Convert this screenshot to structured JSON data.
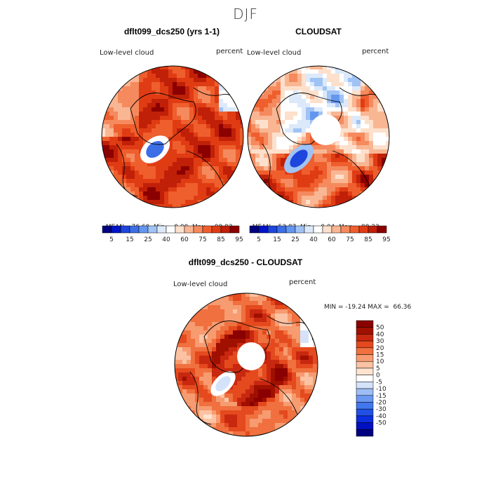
{
  "figure": {
    "title": "DJF"
  },
  "colors": {
    "pos_scale": [
      "#000080",
      "#0014c8",
      "#1e46dc",
      "#3c6ee6",
      "#6496f0",
      "#a0c3f5",
      "#dce9fa",
      "#ffffff",
      "#fde0cc",
      "#f9b693",
      "#f58a5e",
      "#ee5f2d",
      "#e03c14",
      "#c02008",
      "#8b0000"
    ],
    "diff_scale": [
      "#000080",
      "#0010c0",
      "#0a2ee0",
      "#2050e6",
      "#4278ee",
      "#6a98f2",
      "#9ebdf6",
      "#d4e3fa",
      "#ffffff",
      "#fde3d0",
      "#fbc2a3",
      "#f79b70",
      "#f0703f",
      "#e44a1e",
      "#c82810",
      "#a01000",
      "#8b0000"
    ]
  },
  "chart_data": [
    {
      "type": "heatmap",
      "projection": "north-polar-stereographic",
      "title": "dflt099_dcs250 (yrs 1-1)",
      "variable_label": "Low-level cloud",
      "units_label": "percent",
      "stats": {
        "mean_label": "MEAN=",
        "mean": "76.60",
        "min_label": "Min=",
        "min": "0.00",
        "max_label": "Max=",
        "max": "99.92"
      },
      "colorbar": {
        "orientation": "horizontal",
        "tick_labels": [
          "5",
          "15",
          "25",
          "40",
          "60",
          "75",
          "85",
          "95"
        ]
      }
    },
    {
      "type": "heatmap",
      "projection": "north-polar-stereographic",
      "title": "CLOUDSAT",
      "variable_label": "Low-level cloud",
      "units_label": "percent",
      "stats": {
        "mean_label": "MEAN=",
        "mean": "53.87",
        "min_label": "Min=",
        "min": "0.04",
        "max_label": "Max=",
        "max": "88.23"
      },
      "colorbar": {
        "orientation": "horizontal",
        "tick_labels": [
          "5",
          "15",
          "25",
          "40",
          "60",
          "75",
          "85",
          "95"
        ]
      }
    },
    {
      "type": "heatmap",
      "projection": "north-polar-stereographic",
      "title": "dflt099_dcs250 - CLOUDSAT",
      "variable_label": "Low-level cloud",
      "units_label": "percent",
      "range_text": "MIN = -19.24 MAX =  66.36",
      "colorbar": {
        "orientation": "vertical",
        "tick_labels": [
          "50",
          "40",
          "30",
          "20",
          "15",
          "10",
          "5",
          "0",
          "-5",
          "-10",
          "-15",
          "-20",
          "-30",
          "-40",
          "-50"
        ]
      }
    }
  ]
}
